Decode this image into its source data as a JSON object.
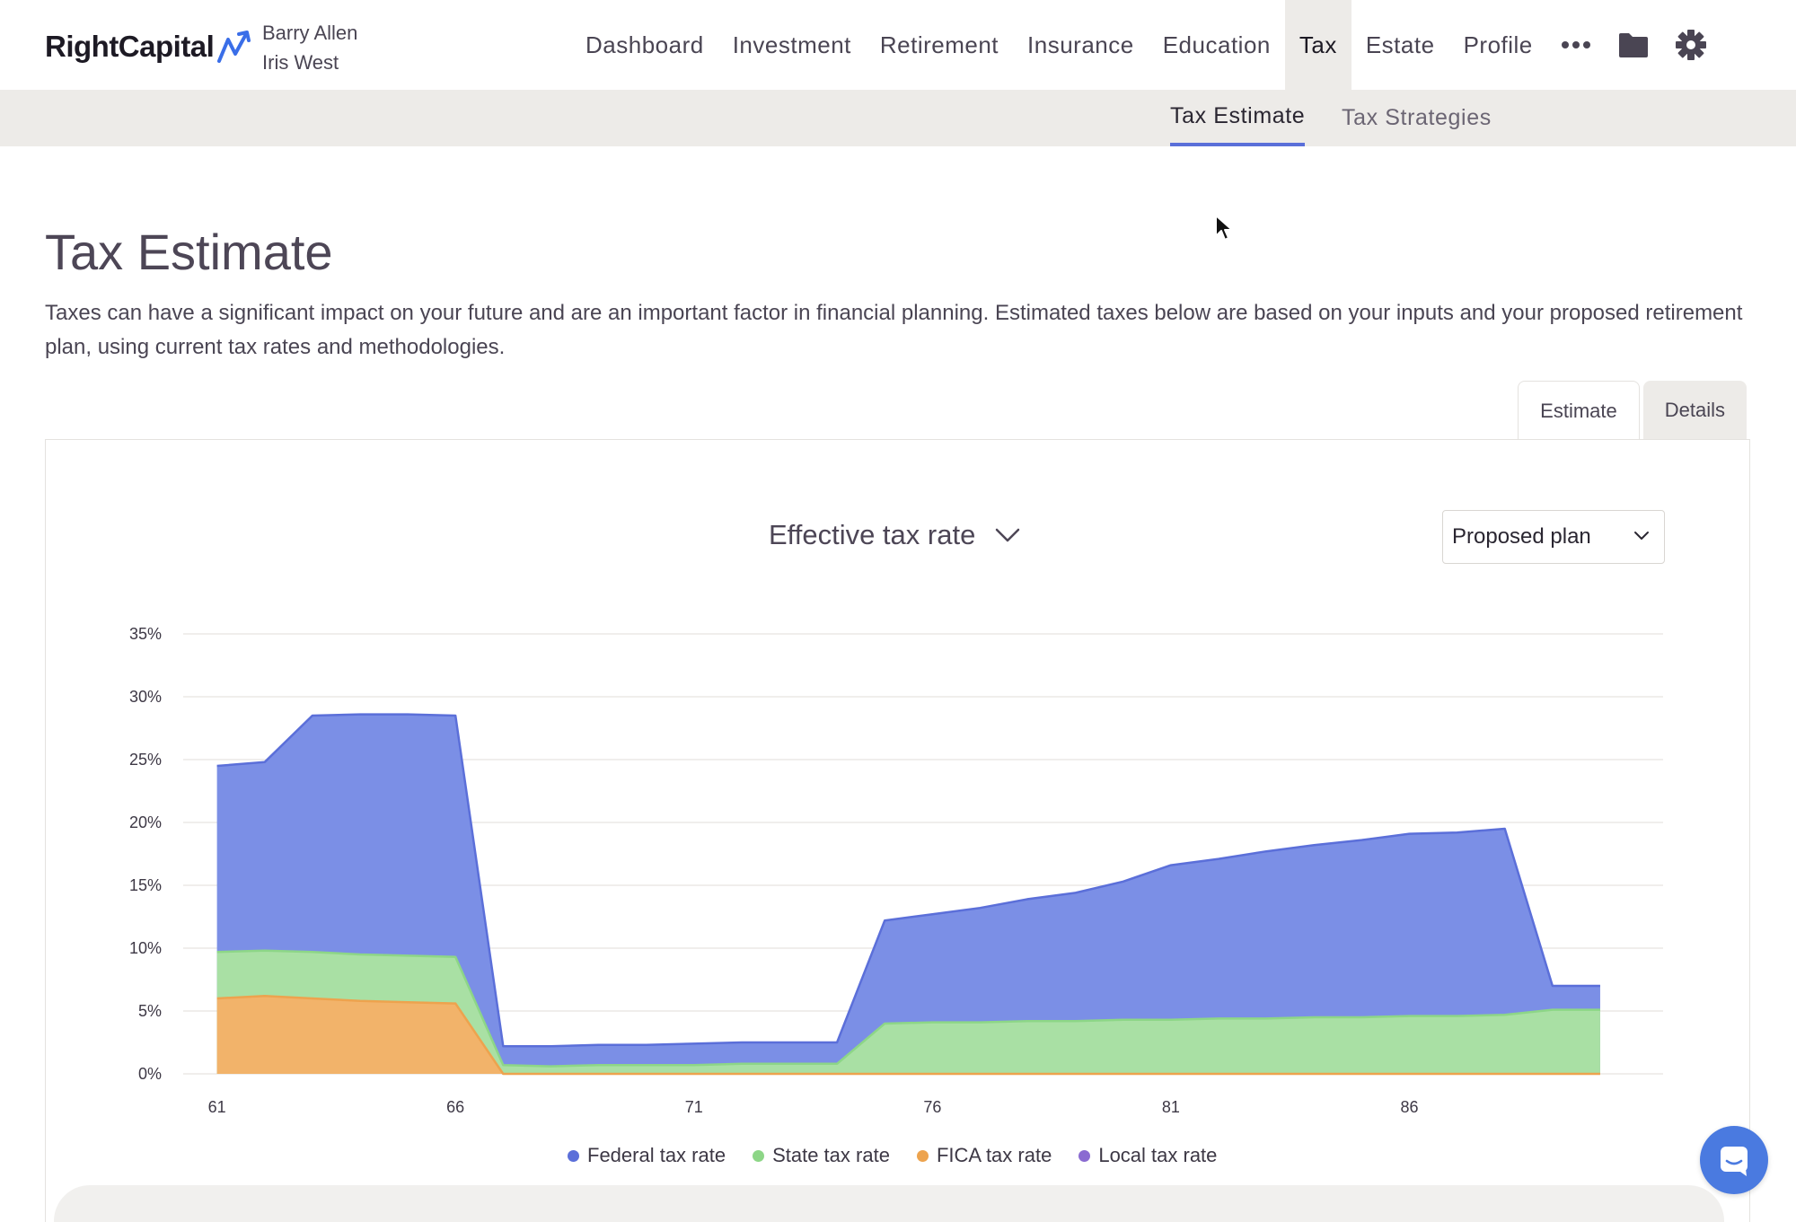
{
  "app": {
    "logo_text": "RightCapital",
    "clients": [
      "Barry Allen",
      "Iris West"
    ]
  },
  "nav": {
    "items": [
      {
        "label": "Dashboard",
        "active": false
      },
      {
        "label": "Investment",
        "active": false
      },
      {
        "label": "Retirement",
        "active": false
      },
      {
        "label": "Insurance",
        "active": false
      },
      {
        "label": "Education",
        "active": false
      },
      {
        "label": "Tax",
        "active": true
      },
      {
        "label": "Estate",
        "active": false
      },
      {
        "label": "Profile",
        "active": false
      }
    ],
    "icons": [
      "more-icon",
      "folder-icon",
      "gear-icon"
    ]
  },
  "subnav": {
    "tabs": [
      {
        "label": "Tax Estimate",
        "active": true
      },
      {
        "label": "Tax Strategies",
        "active": false
      }
    ]
  },
  "page": {
    "title": "Tax Estimate",
    "description": "Taxes can have a significant impact on your future and are an important factor in financial planning. Estimated taxes below are based on your inputs and your proposed retirement plan, using current tax rates and methodologies."
  },
  "view_tabs": [
    {
      "label": "Estimate",
      "active": true
    },
    {
      "label": "Details",
      "active": false
    }
  ],
  "controls": {
    "metric_label": "Effective tax rate",
    "plan_label": "Proposed plan"
  },
  "colors": {
    "federal": "#7b8fe6",
    "federal_line": "#5b6fd9",
    "state": "#a9e0a4",
    "state_line": "#8dd687",
    "fica": "#f2b36a",
    "fica_line": "#eda34e",
    "local": "#8a6bd1",
    "accent": "#5a6fd9"
  },
  "chart_data": {
    "type": "area",
    "stacked": true,
    "x": [
      61,
      62,
      63,
      64,
      65,
      66,
      67,
      68,
      69,
      70,
      71,
      72,
      73,
      74,
      75,
      76,
      77,
      78,
      79,
      80,
      81,
      82,
      83,
      84,
      85,
      86,
      87,
      88,
      89,
      90
    ],
    "ylim": [
      0,
      35
    ],
    "yticks": [
      "0%",
      "5%",
      "10%",
      "15%",
      "20%",
      "25%",
      "30%",
      "35%"
    ],
    "xticks": [
      "61",
      "66",
      "71",
      "76",
      "81",
      "86"
    ],
    "xtick_values": [
      61,
      66,
      71,
      76,
      81,
      86
    ],
    "series": [
      {
        "name": "FICA tax rate",
        "color": "#f2b36a",
        "values": [
          6.0,
          6.2,
          6.0,
          5.8,
          5.7,
          5.6,
          0,
          0,
          0,
          0,
          0,
          0,
          0,
          0,
          0,
          0,
          0,
          0,
          0,
          0,
          0,
          0,
          0,
          0,
          0,
          0,
          0,
          0,
          0,
          0
        ]
      },
      {
        "name": "State tax rate",
        "color": "#a9e0a4",
        "values": [
          3.7,
          3.6,
          3.7,
          3.7,
          3.7,
          3.7,
          0.7,
          0.6,
          0.7,
          0.7,
          0.7,
          0.8,
          0.8,
          0.8,
          4.0,
          4.1,
          4.1,
          4.2,
          4.2,
          4.3,
          4.3,
          4.4,
          4.4,
          4.5,
          4.5,
          4.6,
          4.6,
          4.7,
          5.1,
          5.1
        ]
      },
      {
        "name": "Federal tax rate",
        "color": "#7b8fe6",
        "values": [
          14.8,
          15.0,
          18.8,
          19.1,
          19.2,
          19.2,
          1.5,
          1.6,
          1.6,
          1.6,
          1.7,
          1.7,
          1.7,
          1.7,
          8.2,
          8.6,
          9.1,
          9.7,
          10.2,
          11.0,
          12.3,
          12.7,
          13.3,
          13.7,
          14.1,
          14.5,
          14.6,
          14.8,
          1.9,
          1.9
        ]
      },
      {
        "name": "Local tax rate",
        "color": "#8a6bd1",
        "values": [
          0,
          0,
          0,
          0,
          0,
          0,
          0,
          0,
          0,
          0,
          0,
          0,
          0,
          0,
          0,
          0,
          0,
          0,
          0,
          0,
          0,
          0,
          0,
          0,
          0,
          0,
          0,
          0,
          0,
          0
        ]
      }
    ],
    "legend": [
      "Federal tax rate",
      "State tax rate",
      "FICA tax rate",
      "Local tax rate"
    ],
    "legend_position": "bottom",
    "grid": true
  }
}
